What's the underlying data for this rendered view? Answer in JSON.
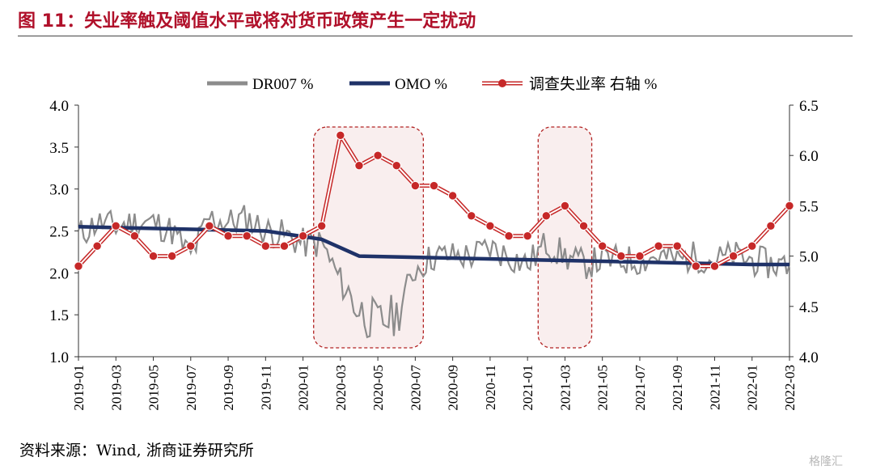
{
  "header": {
    "title": "图 11：失业率触及阈值水平或将对货币政策产生一定扰动"
  },
  "footer": {
    "source": "资料来源：Wind, 浙商证券研究所",
    "watermark": "格隆汇"
  },
  "colors": {
    "title": "#b0102a",
    "dr007": "#8c8c8c",
    "omo": "#1f3268",
    "unemployment": "#c62828",
    "highlight_fill": "#f9eeee",
    "highlight_border": "#b22222"
  },
  "chart_data": {
    "type": "line",
    "x_ticks": [
      "2019-01",
      "2019-03",
      "2019-05",
      "2019-07",
      "2019-09",
      "2019-11",
      "2020-01",
      "2020-03",
      "2020-05",
      "2020-07",
      "2020-09",
      "2020-11",
      "2021-01",
      "2021-03",
      "2021-05",
      "2021-07",
      "2021-09",
      "2021-11",
      "2022-01",
      "2022-03"
    ],
    "y_left": {
      "lim": [
        1.0,
        4.0
      ],
      "ticks": [
        "1.0",
        "1.5",
        "2.0",
        "2.5",
        "3.0",
        "3.5",
        "4.0"
      ]
    },
    "y_right": {
      "lim": [
        4.0,
        6.5
      ],
      "ticks": [
        "4.0",
        "4.5",
        "5.0",
        "5.5",
        "6.0",
        "6.5"
      ]
    },
    "legend_position": "top-center",
    "grid": false,
    "series": [
      {
        "name": "DR007 %",
        "axis": "left",
        "style": "thin-line",
        "x": [
          "2019-01",
          "2019-02",
          "2019-03",
          "2019-04",
          "2019-05",
          "2019-06",
          "2019-07",
          "2019-08",
          "2019-09",
          "2019-10",
          "2019-11",
          "2019-12",
          "2020-01",
          "2020-02",
          "2020-03",
          "2020-04",
          "2020-05",
          "2020-06",
          "2020-07",
          "2020-08",
          "2020-09",
          "2020-10",
          "2020-11",
          "2020-12",
          "2021-01",
          "2021-02",
          "2021-03",
          "2021-04",
          "2021-05",
          "2021-06",
          "2021-07",
          "2021-08",
          "2021-09",
          "2021-10",
          "2021-11",
          "2021-12",
          "2022-01",
          "2022-02",
          "2022-03"
        ],
        "values": [
          2.45,
          2.6,
          2.55,
          2.6,
          2.6,
          2.5,
          2.2,
          2.65,
          2.6,
          2.65,
          2.5,
          2.45,
          2.35,
          2.35,
          1.9,
          1.55,
          1.4,
          1.5,
          2.05,
          2.2,
          2.2,
          2.2,
          2.3,
          2.2,
          2.1,
          2.35,
          2.2,
          2.1,
          2.15,
          2.15,
          2.15,
          2.2,
          2.15,
          2.2,
          2.15,
          2.2,
          2.15,
          2.1,
          2.1
        ]
      },
      {
        "name": "OMO %",
        "axis": "left",
        "style": "thick-step",
        "x": [
          "2019-01",
          "2019-11",
          "2020-02",
          "2020-03",
          "2020-04",
          "2022-01",
          "2022-03"
        ],
        "values": [
          2.55,
          2.5,
          2.4,
          2.3,
          2.2,
          2.1,
          2.1
        ]
      },
      {
        "name": "调查失业率 右轴 %",
        "axis": "right",
        "style": "double-line-dots",
        "x": [
          "2019-01",
          "2019-02",
          "2019-03",
          "2019-04",
          "2019-05",
          "2019-06",
          "2019-07",
          "2019-08",
          "2019-09",
          "2019-10",
          "2019-11",
          "2019-12",
          "2020-01",
          "2020-02",
          "2020-03",
          "2020-04",
          "2020-05",
          "2020-06",
          "2020-07",
          "2020-08",
          "2020-09",
          "2020-10",
          "2020-11",
          "2020-12",
          "2021-01",
          "2021-02",
          "2021-03",
          "2021-04",
          "2021-05",
          "2021-06",
          "2021-07",
          "2021-08",
          "2021-09",
          "2021-10",
          "2021-11",
          "2021-12",
          "2022-01",
          "2022-02",
          "2022-03"
        ],
        "values": [
          4.9,
          5.1,
          5.3,
          5.2,
          5.0,
          5.0,
          5.1,
          5.3,
          5.2,
          5.2,
          5.1,
          5.1,
          5.2,
          5.3,
          6.2,
          5.9,
          6.0,
          5.9,
          5.7,
          5.7,
          5.6,
          5.4,
          5.3,
          5.2,
          5.2,
          5.4,
          5.5,
          5.3,
          5.1,
          5.0,
          5.0,
          5.1,
          5.1,
          4.9,
          4.9,
          5.0,
          5.1,
          5.3,
          5.5
        ]
      }
    ],
    "highlights": [
      {
        "from": "2020-02",
        "to": "2020-07"
      },
      {
        "from": "2021-02",
        "to": "2021-04"
      }
    ]
  }
}
